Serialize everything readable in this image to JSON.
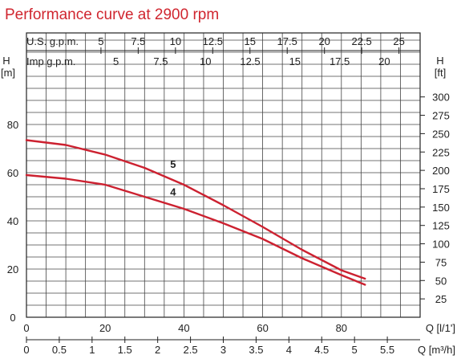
{
  "title": "Performance curve at 2900 rpm",
  "chart_data": {
    "type": "line",
    "title": "Performance curve at 2900 rpm",
    "x_axes": {
      "top_us": {
        "label": "U.S. g.p.m.",
        "ticks": [
          "5",
          "7.5",
          "10",
          "12.5",
          "15",
          "17.5",
          "20",
          "22.5",
          "25"
        ],
        "values": [
          5,
          7.5,
          10,
          12.5,
          15,
          17.5,
          20,
          22.5,
          25
        ]
      },
      "top_imp": {
        "label": "Imp g.p.m.",
        "ticks": [
          "5",
          "7.5",
          "10",
          "12.5",
          "15",
          "17.5",
          "20"
        ],
        "values": [
          5,
          7.5,
          10,
          12.5,
          15,
          17.5,
          20
        ]
      },
      "bottom_ls": {
        "label": "Q [l/1']",
        "ticks": [
          "0",
          "20",
          "40",
          "60",
          "80"
        ],
        "values": [
          0,
          20,
          40,
          60,
          80
        ]
      },
      "bottom_m3h": {
        "label": "Q [m³/h]",
        "ticks": [
          "0",
          "0.5",
          "1",
          "1.5",
          "2",
          "2.5",
          "3",
          "3.5",
          "4",
          "4.5",
          "5",
          "5.5"
        ],
        "values": [
          0,
          0.5,
          1,
          1.5,
          2,
          2.5,
          3,
          3.5,
          4,
          4.5,
          5,
          5.5
        ]
      }
    },
    "y_axes": {
      "left": {
        "label_top": "H",
        "label_unit": "[m]",
        "ticks": [
          "0",
          "20",
          "40",
          "60",
          "80"
        ],
        "values": [
          0,
          20,
          40,
          60,
          80
        ]
      },
      "right": {
        "label_top": "H",
        "label_unit": "[ft]",
        "ticks": [
          "25",
          "50",
          "75",
          "100",
          "125",
          "150",
          "175",
          "200",
          "225",
          "250",
          "275",
          "300"
        ],
        "values": [
          25,
          50,
          75,
          100,
          125,
          150,
          175,
          200,
          225,
          250,
          275,
          300
        ]
      }
    },
    "xlim": [
      0,
      100
    ],
    "ylim": [
      0,
      100
    ],
    "grid": true,
    "series": [
      {
        "name": "5",
        "x": [
          0,
          10,
          20,
          30,
          40,
          50,
          60,
          70,
          80,
          86
        ],
        "y": [
          73.5,
          71.5,
          67.5,
          62,
          55,
          46.5,
          37.5,
          28,
          19.5,
          16
        ]
      },
      {
        "name": "4",
        "x": [
          0,
          10,
          20,
          30,
          40,
          50,
          60,
          70,
          80,
          86
        ],
        "y": [
          59,
          57.5,
          55,
          50,
          45,
          39,
          32.5,
          24.5,
          17.5,
          13.5
        ]
      }
    ]
  }
}
